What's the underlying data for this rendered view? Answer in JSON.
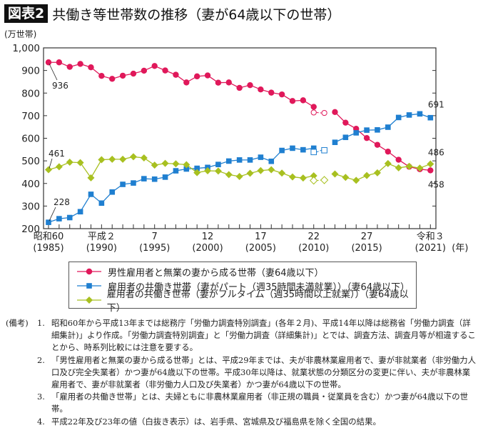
{
  "title": {
    "badge": "図表2",
    "text": "共働き等世帯数の推移（妻が64歳以下の世帯）"
  },
  "chart_data": {
    "type": "line",
    "ylabel": "(万世帯)",
    "xunit": "(年)",
    "ylim": [
      200,
      1000
    ],
    "yticks": [
      "200",
      "300",
      "400",
      "500",
      "600",
      "700",
      "800",
      "900",
      "1,000"
    ],
    "x": [
      1985,
      1986,
      1987,
      1988,
      1989,
      1990,
      1991,
      1992,
      1993,
      1994,
      1995,
      1996,
      1997,
      1998,
      1999,
      2000,
      2001,
      2002,
      2003,
      2004,
      2005,
      2006,
      2007,
      2008,
      2009,
      2010,
      2011,
      2012,
      2013,
      2014,
      2015,
      2016,
      2017,
      2018,
      2019,
      2020,
      2021
    ],
    "xticks": [
      {
        "year": 1985,
        "label1": "昭和60",
        "label2": "(1985)"
      },
      {
        "year": 1990,
        "label1": "平成２",
        "label2": "(1990)"
      },
      {
        "year": 1995,
        "label1": "7",
        "label2": "(1995)"
      },
      {
        "year": 2000,
        "label1": "12",
        "label2": "(2000)"
      },
      {
        "year": 2005,
        "label1": "17",
        "label2": "(2005)"
      },
      {
        "year": 2010,
        "label1": "22",
        "label2": "(2010)"
      },
      {
        "year": 2015,
        "label1": "27",
        "label2": "(2015)"
      },
      {
        "year": 2021,
        "label1": "令和３",
        "label2": "(2021)"
      }
    ],
    "series": [
      {
        "name": "男性雇用者と無業の妻から成る世帯（妻64歳以下）",
        "color": "#e0185a",
        "marker": "circle",
        "values": [
          936,
          936,
          916,
          929,
          914,
          876,
          863,
          877,
          886,
          899,
          920,
          900,
          881,
          847,
          874,
          878,
          846,
          847,
          823,
          835,
          816,
          802,
          794,
          765,
          768,
          739,
          null,
          716,
          669,
          642,
          601,
          571,
          541,
          505,
          474,
          463,
          458
        ],
        "hollow": {
          "2010": 714,
          "2011": 712
        },
        "labels": [
          {
            "year": 1985,
            "text": "936"
          },
          {
            "year": 2021,
            "text": "458"
          }
        ]
      },
      {
        "name": "雇用者の共働き世帯（妻がパート（週35時間未満就業））（妻64歳以下）",
        "color": "#1f7fd0",
        "marker": "square",
        "values": [
          228,
          244,
          249,
          275,
          352,
          313,
          362,
          396,
          402,
          421,
          419,
          428,
          456,
          464,
          467,
          471,
          484,
          499,
          504,
          504,
          516,
          498,
          546,
          556,
          549,
          556,
          null,
          582,
          604,
          624,
          636,
          637,
          649,
          692,
          703,
          708,
          691
        ],
        "hollow": {
          "2010": 539,
          "2011": 547
        },
        "labels": [
          {
            "year": 1985,
            "text": "228"
          },
          {
            "year": 2021,
            "text": "691"
          }
        ]
      },
      {
        "name": "雇用者の共働き世帯（妻がフルタイム（週35時間以上就業））（妻64歳以下）",
        "color": "#a8c020",
        "marker": "diamond",
        "values": [
          461,
          474,
          494,
          492,
          425,
          505,
          507,
          507,
          518,
          513,
          481,
          489,
          487,
          483,
          448,
          456,
          455,
          439,
          431,
          445,
          457,
          461,
          446,
          429,
          424,
          434,
          null,
          442,
          427,
          414,
          435,
          447,
          488,
          469,
          476,
          468,
          486
        ],
        "hollow": {
          "2010": 413,
          "2011": 415
        },
        "labels": [
          {
            "year": 1985,
            "text": "461"
          },
          {
            "year": 2021,
            "text": "486"
          }
        ]
      }
    ]
  },
  "notes": {
    "head": "(備考)",
    "items": [
      {
        "num": "1.",
        "text": "昭和60年から平成13年までは総務庁「労働力調査特別調査」(各年２月)、平成14年以降は総務省「労働力調査（詳細集計)」より作成。「労働力調査特別調査」と「労働力調査（詳細集計)」とでは、調査方法、調査月等が相違することから、時系列比較には注意を要する。"
      },
      {
        "num": "2.",
        "text": "「男性雇用者と無業の妻から成る世帯」とは、平成29年までは、夫が非農林業雇用者で、妻が非就業者（非労働力人口及び完全失業者）かつ妻が64歳以下の世帯。平成30年以降は、就業状態の分類区分の変更に伴い、夫が非農林業雇用者で、妻が非就業者（非労働力人口及び失業者）かつ妻が64歳以下の世帯。"
      },
      {
        "num": "3.",
        "text": "「雇用者の共働き世帯」とは、夫婦ともに非農林業雇用者（非正規の職員・従業員を含む）かつ妻が64歳以下の世帯。"
      },
      {
        "num": "4.",
        "text": "平成22年及び23年の値（白抜き表示）は、岩手県、宮城県及び福島県を除く全国の結果。"
      }
    ]
  }
}
